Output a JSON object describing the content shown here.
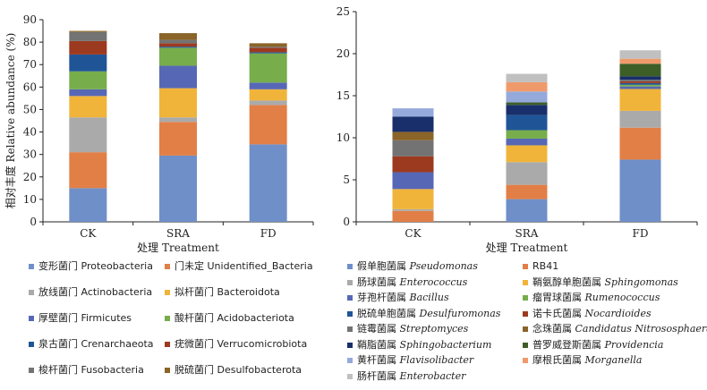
{
  "colors": {
    "Proteobacteria": "#6f8fc8",
    "Unidentified_Bacteria": "#e27f47",
    "Actinobacteria": "#aaaaaa",
    "Bacteroidota": "#f0b43a",
    "Firmicutes": "#5668b5",
    "Acidobacteriota": "#77ad4b",
    "Crenarchaeota": "#1f5596",
    "Verrucomicrobiota": "#9c3a1f",
    "Fusobacteria": "#737373",
    "Desulfobacterota": "#8a6428",
    "Pseudomonas": "#6f8fc8",
    "RB41": "#e27f47",
    "Enterococcus": "#aaaaaa",
    "Sphingomonas": "#f0b43a",
    "Bacillus": "#5668b5",
    "Rumenococcus": "#77ad4b",
    "Desulfuromonas": "#1f5596",
    "Nocardioides": "#9c3a1f",
    "Streptomyces": "#737373",
    "Nitrososphaera": "#8a6428",
    "Sphingobacterium": "#182f6b",
    "Providencia": "#3e5e28",
    "Flavisolibacter": "#95aadb",
    "Morganella": "#f09a6c",
    "Enterobacter": "#c0c0c0"
  },
  "chart_data": [
    {
      "type": "bar",
      "stacked": true,
      "categories": [
        "CK",
        "SRA",
        "FD"
      ],
      "xlabel": "处理 Treatment",
      "ylabel": "相对丰度 Relative abundance (%)",
      "ylim": [
        0,
        90
      ],
      "yticks": [
        0,
        10,
        20,
        30,
        40,
        50,
        60,
        70,
        80,
        90
      ],
      "series": [
        {
          "name": "变形菌门 Proteobacteria",
          "key": "Proteobacteria",
          "values": [
            15.0,
            29.5,
            34.5
          ]
        },
        {
          "name": "门未定 Unidentified_Bacteria",
          "key": "Unidentified_Bacteria",
          "values": [
            16.0,
            15.0,
            17.5
          ]
        },
        {
          "name": "放线菌门 Actinobacteria",
          "key": "Actinobacteria",
          "values": [
            15.5,
            2.0,
            2.0
          ]
        },
        {
          "name": "拟杆菌门 Bacteroidota",
          "key": "Bacteroidota",
          "values": [
            9.5,
            13.0,
            5.0
          ]
        },
        {
          "name": "厚壁菌门 Firmicutes",
          "key": "Firmicutes",
          "values": [
            3.0,
            10.0,
            3.0
          ]
        },
        {
          "name": "酸杆菌门 Acidobacteriota",
          "key": "Acidobacteriota",
          "values": [
            8.0,
            8.0,
            13.0
          ]
        },
        {
          "name": "泉古菌门 Crenarchaeota",
          "key": "Crenarchaeota",
          "values": [
            7.5,
            0.5,
            0.5
          ]
        },
        {
          "name": "疣微菌门 Verrucomicrobiota",
          "key": "Verrucomicrobiota",
          "values": [
            6.0,
            1.5,
            2.0
          ]
        },
        {
          "name": "梭杆菌门 Fusobacteria",
          "key": "Fusobacteria",
          "values": [
            4.0,
            1.5,
            0.5
          ]
        },
        {
          "name": "脱硫菌门 Desulfobacterota",
          "key": "Desulfobacterota",
          "values": [
            0.5,
            3.0,
            1.5
          ]
        }
      ],
      "legend": [
        {
          "cn": "变形菌门",
          "latin": "Proteobacteria",
          "key": "Proteobacteria"
        },
        {
          "cn": "门未定",
          "latin": "Unidentified_Bacteria",
          "key": "Unidentified_Bacteria"
        },
        {
          "cn": "放线菌门",
          "latin": "Actinobacteria",
          "key": "Actinobacteria"
        },
        {
          "cn": "拟杆菌门",
          "latin": "Bacteroidota",
          "key": "Bacteroidota"
        },
        {
          "cn": "厚壁菌门",
          "latin": "Firmicutes",
          "key": "Firmicutes"
        },
        {
          "cn": "酸杆菌门",
          "latin": "Acidobacteriota",
          "key": "Acidobacteriota"
        },
        {
          "cn": "泉古菌门",
          "latin": "Crenarchaeota",
          "key": "Crenarchaeota"
        },
        {
          "cn": "疣微菌门",
          "latin": "Verrucomicrobiota",
          "key": "Verrucomicrobiota"
        },
        {
          "cn": "梭杆菌门",
          "latin": "Fusobacteria",
          "key": "Fusobacteria"
        },
        {
          "cn": "脱硫菌门",
          "latin": "Desulfobacterota",
          "key": "Desulfobacterota"
        }
      ]
    },
    {
      "type": "bar",
      "stacked": true,
      "categories": [
        "CK",
        "SRA",
        "FD"
      ],
      "xlabel": "处理 Treatment",
      "ylabel": "",
      "ylim": [
        0,
        25
      ],
      "yticks": [
        0,
        5,
        10,
        15,
        20,
        25
      ],
      "series": [
        {
          "name": "假单胞菌属 Pseudomonas",
          "key": "Pseudomonas",
          "values": [
            0.0,
            2.7,
            7.4
          ]
        },
        {
          "name": "RB41",
          "key": "RB41",
          "values": [
            1.3,
            1.7,
            3.8
          ]
        },
        {
          "name": "肠球菌属 Enterococcus",
          "key": "Enterococcus",
          "values": [
            0.2,
            2.7,
            2.0
          ]
        },
        {
          "name": "鞘氨醇单胞菌属 Sphingomonas",
          "key": "Sphingomonas",
          "values": [
            2.4,
            2.0,
            2.6
          ]
        },
        {
          "name": "芽孢杆菌属 Bacillus",
          "key": "Bacillus",
          "values": [
            2.0,
            0.8,
            0.3
          ]
        },
        {
          "name": "瘤胃球菌属 Rumenococcus",
          "key": "Rumenococcus",
          "values": [
            0.0,
            1.0,
            0.2
          ]
        },
        {
          "name": "脱硫单胞菌属 Desulfuromonas",
          "key": "Desulfuromonas",
          "values": [
            0.0,
            1.8,
            0.2
          ]
        },
        {
          "name": "诺卡氏菌属 Nocardioides",
          "key": "Nocardioides",
          "values": [
            1.9,
            0.0,
            0.2
          ]
        },
        {
          "name": "链霉菌属 Streptomyces",
          "key": "Streptomyces",
          "values": [
            1.9,
            0.0,
            0.2
          ]
        },
        {
          "name": "念珠菌属 Candidatus Nitrososphaera",
          "key": "Nitrososphaera",
          "values": [
            1.0,
            0.0,
            0.0
          ]
        },
        {
          "name": "鞘脂菌属 Sphingobacterium",
          "key": "Sphingobacterium",
          "values": [
            1.8,
            1.2,
            0.4
          ]
        },
        {
          "name": "普罗威登斯菌属 Providencia",
          "key": "Providencia",
          "values": [
            0.0,
            0.3,
            1.5
          ]
        },
        {
          "name": "黄杆菌属 Flavisolibacter",
          "key": "Flavisolibacter",
          "values": [
            1.0,
            1.3,
            0.0
          ]
        },
        {
          "name": "摩根氏菌属 Morganella",
          "key": "Morganella",
          "values": [
            0.0,
            1.1,
            0.6
          ]
        },
        {
          "name": "肠杆菌属 Enterobacter",
          "key": "Enterobacter",
          "values": [
            0.0,
            1.0,
            1.0
          ]
        }
      ],
      "legend": [
        {
          "cn": "假单胞菌属",
          "latin": "Pseudomonas",
          "key": "Pseudomonas"
        },
        {
          "cn": "",
          "latin": "RB41",
          "key": "RB41",
          "plain": true
        },
        {
          "cn": "肠球菌属",
          "latin": "Enterococcus",
          "key": "Enterococcus"
        },
        {
          "cn": "鞘氨醇单胞菌属",
          "latin": "Sphingomonas",
          "key": "Sphingomonas"
        },
        {
          "cn": "芽孢杆菌属",
          "latin": "Bacillus",
          "key": "Bacillus"
        },
        {
          "cn": "瘤胃球菌属",
          "latin": "Rumenococcus",
          "key": "Rumenococcus"
        },
        {
          "cn": "脱硫单胞菌属",
          "latin": "Desulfuromonas",
          "key": "Desulfuromonas"
        },
        {
          "cn": "诺卡氏菌属",
          "latin": "Nocardioides",
          "key": "Nocardioides"
        },
        {
          "cn": "链霉菌属",
          "latin": "Streptomyces",
          "key": "Streptomyces"
        },
        {
          "cn": "念珠菌属",
          "latin": "Candidatus Nitrososphaera",
          "key": "Nitrososphaera"
        },
        {
          "cn": "鞘脂菌属",
          "latin": "Sphingobacterium",
          "key": "Sphingobacterium"
        },
        {
          "cn": "普罗威登斯菌属",
          "latin": "Providencia",
          "key": "Providencia"
        },
        {
          "cn": "黄杆菌属",
          "latin": "Flavisolibacter",
          "key": "Flavisolibacter"
        },
        {
          "cn": "摩根氏菌属",
          "latin": "Morganella",
          "key": "Morganella"
        },
        {
          "cn": "肠杆菌属",
          "latin": "Enterobacter",
          "key": "Enterobacter"
        }
      ]
    }
  ]
}
